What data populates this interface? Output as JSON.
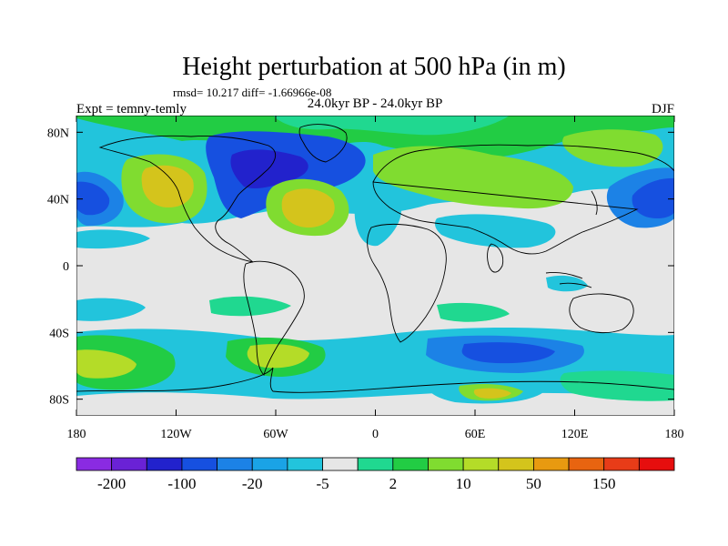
{
  "title": "Height perturbation at 500 hPa (in m)",
  "stats": "rmsd= 10.217 diff= -1.66966e-08",
  "experiment": "Expt = temny-temly",
  "period": "24.0kyr BP - 24.0kyr BP",
  "season": "DJF",
  "map": {
    "lon_ticks": [
      "180",
      "120W",
      "60W",
      "0",
      "60E",
      "120E",
      "180"
    ],
    "lat_ticks": [
      "80N",
      "40N",
      "0",
      "40S",
      "80S"
    ],
    "lon_values": [
      -180,
      -120,
      -60,
      0,
      60,
      120,
      180
    ],
    "lat_values": [
      80,
      40,
      0,
      -40,
      -80
    ],
    "lon_range": [
      -180,
      180
    ],
    "lat_range": [
      -90,
      90
    ]
  },
  "colorbar": {
    "labels": [
      "-200",
      "-100",
      "-20",
      "-5",
      "2",
      "10",
      "50",
      "150"
    ],
    "colors": [
      "#8a2be2",
      "#6a22d6",
      "#2222cc",
      "#1650e0",
      "#1c82e6",
      "#1aa3e6",
      "#22c4dc",
      "#e6e6e6",
      "#20d890",
      "#22cc44",
      "#80dc30",
      "#b4dc28",
      "#d4c41c",
      "#e89a10",
      "#e86410",
      "#e83c18",
      "#e60e0e"
    ]
  },
  "palette": {
    "neutral": "#e6e6e6",
    "cyan": "#22c4dc",
    "lightblue": "#1c82e6",
    "blue": "#1650e0",
    "teal": "#20d890",
    "green": "#22cc44",
    "lightgreen": "#80dc30",
    "yellowgreen": "#b4dc28",
    "yellow": "#d4c41c",
    "orange": "#e89a10"
  }
}
